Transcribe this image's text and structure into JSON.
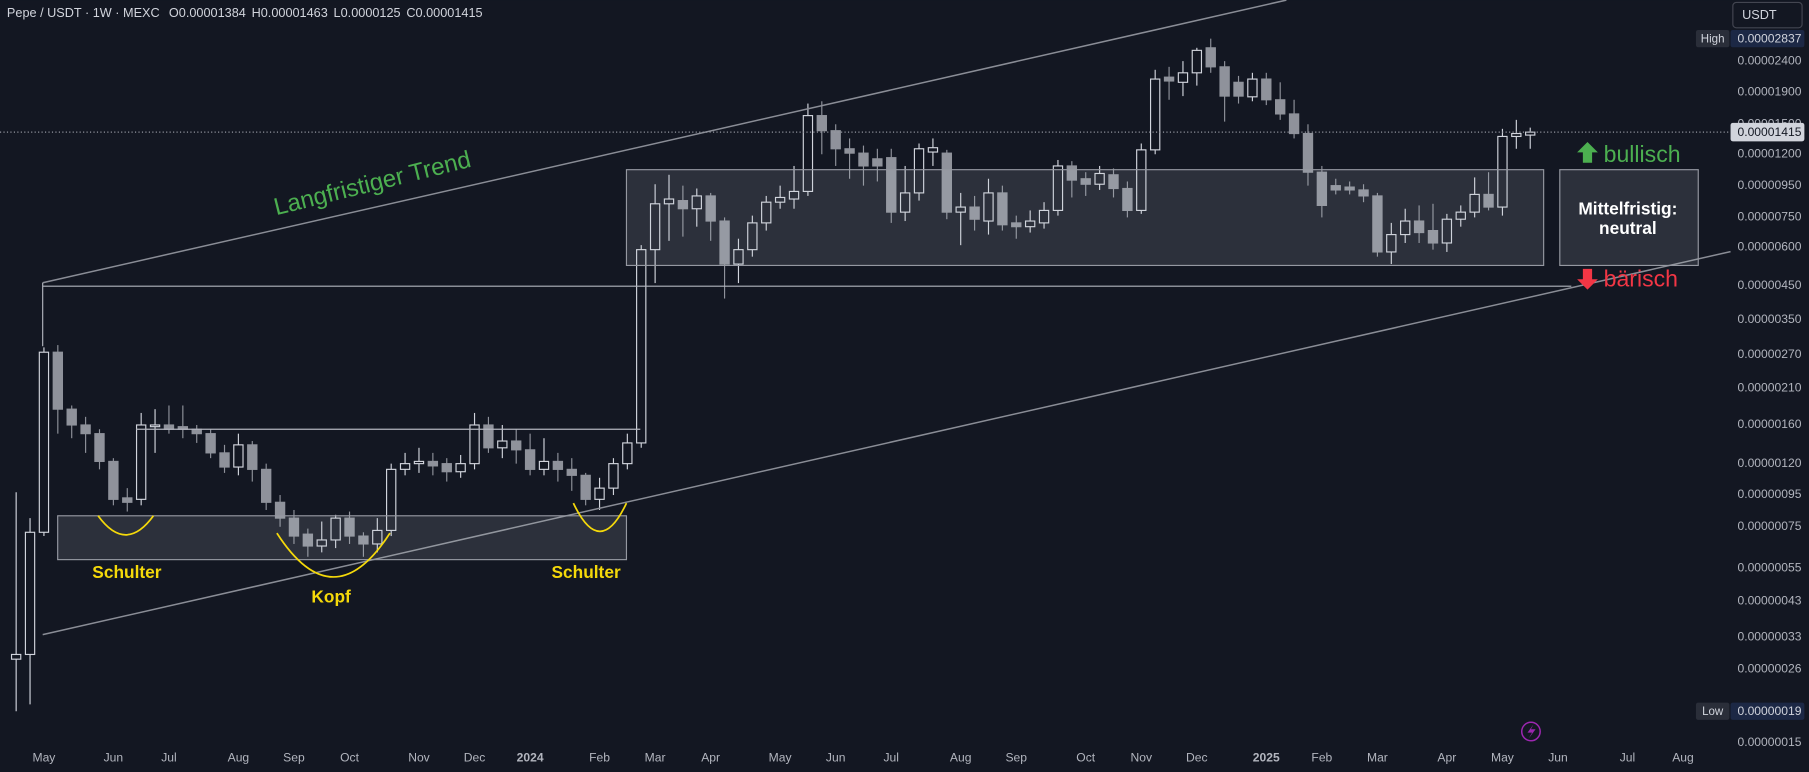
{
  "chart_data": {
    "type": "candlestick",
    "header": {
      "symbol": "Pepe / USDT · 1W · MEXC",
      "fields": [
        "O",
        "H",
        "L",
        "C"
      ],
      "currency": "USDT"
    },
    "categories": [
      null,
      null,
      "May",
      null,
      null,
      null,
      null,
      "Jun",
      null,
      null,
      null,
      "Jul",
      null,
      null,
      null,
      null,
      "Aug",
      null,
      null,
      null,
      "Sep",
      null,
      null,
      null,
      "Oct",
      null,
      null,
      null,
      null,
      "Nov",
      null,
      null,
      null,
      "Dec",
      null,
      null,
      null,
      "2024",
      null,
      null,
      null,
      null,
      "Feb",
      null,
      null,
      null,
      "Mar",
      null,
      null,
      null,
      "Apr",
      null,
      null,
      null,
      null,
      "May",
      null,
      null,
      null,
      "Jun",
      null,
      null,
      null,
      "Jul",
      null,
      null,
      null,
      null,
      "Aug",
      null,
      null,
      null,
      "Sep",
      null,
      null,
      null,
      null,
      "Oct",
      null,
      null,
      null,
      "Nov",
      null,
      null,
      null,
      "Dec",
      null,
      null,
      null,
      null,
      "2025",
      null,
      null,
      null,
      "Feb",
      null,
      null,
      null,
      "Mar",
      null,
      null,
      null,
      null,
      "Apr",
      null,
      null,
      null,
      "May",
      null,
      null,
      null,
      "Jun",
      null,
      null,
      null,
      null,
      "Jul",
      null,
      null,
      null,
      "Aug"
    ],
    "open": [
      2.8e-07,
      2.9e-07,
      7.2e-07,
      2.75e-06,
      1.8e-06,
      1.6e-06,
      1.5e-06,
      1.22e-06,
      9.3e-07,
      9.2e-07,
      1.58e-06,
      1.6e-06,
      1.58e-06,
      1.55e-06,
      1.5e-06,
      1.3e-06,
      1.17e-06,
      1.38e-06,
      1.15e-06,
      9e-07,
      8e-07,
      7.1e-07,
      6.5e-07,
      6.8e-07,
      8e-07,
      7e-07,
      6.6e-07,
      7.3e-07,
      1.15e-06,
      1.2e-06,
      1.22e-06,
      1.2e-06,
      1.13e-06,
      1.2e-06,
      1.6e-06,
      1.35e-06,
      1.42e-06,
      1.33e-06,
      1.15e-06,
      1.22e-06,
      1.15e-06,
      1.1e-06,
      9.2e-07,
      1e-06,
      1.2e-06,
      1.4e-06,
      5.9e-06,
      8.3e-06,
      8.5e-06,
      8e-06,
      8.8e-06,
      7.3e-06,
      5.3e-06,
      5.9e-06,
      7.2e-06,
      8.4e-06,
      8.6e-06,
      9.1e-06,
      1.6e-05,
      1.43e-05,
      1.25e-05,
      1.21e-05,
      1.16e-05,
      1.17e-05,
      7.8e-06,
      9e-06,
      1.22e-05,
      1.21e-05,
      7.8e-06,
      8.1e-06,
      7.3e-06,
      9e-06,
      7.2e-06,
      7e-06,
      7.2e-06,
      7.9e-06,
      1.1e-05,
      1e-05,
      9.6e-06,
      1.03e-05,
      9.3e-06,
      7.9e-06,
      1.24e-05,
      2.13e-05,
      2.05e-05,
      2.2e-05,
      2.65e-05,
      2.3e-05,
      2.05e-05,
      1.84e-05,
      2.1e-05,
      1.8e-05,
      1.62e-05,
      1.4e-05,
      1.05e-05,
      9.5e-06,
      9.4e-06,
      9.2e-06,
      8.8e-06,
      5.8e-06,
      6.6e-06,
      7.3e-06,
      6.8e-06,
      6.2e-06,
      7.4e-06,
      7.8e-06,
      8.9e-06,
      8.1e-06,
      1.37e-05,
      1.384e-05,
      null,
      null,
      null,
      null,
      null,
      null,
      null,
      null,
      null,
      null,
      null
    ],
    "high": [
      9.7e-07,
      8e-07,
      2.85e-06,
      2.9e-06,
      1.85e-06,
      1.7e-06,
      1.55e-06,
      1.25e-06,
      1e-06,
      1.75e-06,
      1.8e-06,
      1.85e-06,
      1.85e-06,
      1.6e-06,
      1.55e-06,
      1.38e-06,
      1.5e-06,
      1.42e-06,
      1.2e-06,
      9.5e-07,
      8.5e-07,
      7.4e-07,
      7.8e-07,
      8.2e-07,
      8.4e-07,
      7.2e-07,
      8e-07,
      1.2e-06,
      1.3e-06,
      1.35e-06,
      1.3e-06,
      1.25e-06,
      1.28e-06,
      1.75e-06,
      1.7e-06,
      1.6e-06,
      1.55e-06,
      1.5e-06,
      1.45e-06,
      1.3e-06,
      1.25e-06,
      1.12e-06,
      1.08e-06,
      1.25e-06,
      1.5e-06,
      6.1e-06,
      9.6e-06,
      1.03e-05,
      9.5e-06,
      9.3e-06,
      9e-06,
      7.5e-06,
      6.4e-06,
      7.6e-06,
      8.8e-06,
      9.5e-06,
      1.1e-05,
      1.75e-05,
      1.78e-05,
      1.5e-05,
      1.35e-05,
      1.28e-05,
      1.25e-05,
      1.25e-05,
      1.1e-05,
      1.3e-05,
      1.35e-05,
      1.24e-05,
      9e-06,
      8.8e-06,
      1e-05,
      9.5e-06,
      7.6e-06,
      7.9e-06,
      8.4e-06,
      1.15e-05,
      1.14e-05,
      1.05e-05,
      1.1e-05,
      1.08e-05,
      9.8e-06,
      1.3e-05,
      2.25e-05,
      2.3e-05,
      2.4e-05,
      2.65e-05,
      2.837e-05,
      2.4e-05,
      2.15e-05,
      2.2e-05,
      2.2e-05,
      2.05e-05,
      1.8e-05,
      1.5e-05,
      1.1e-05,
      1e-05,
      9.8e-06,
      9.6e-06,
      9e-06,
      7.2e-06,
      8e-06,
      8.2e-06,
      8.3e-06,
      7.7e-06,
      8.2e-06,
      1.01e-05,
      1.05e-05,
      1.45e-05,
      1.55e-05,
      1.463e-05,
      null,
      null,
      null,
      null,
      null,
      null,
      null,
      null,
      null,
      null,
      null
    ],
    "low": [
      1.9e-07,
      2e-07,
      7e-07,
      1.5e-06,
      1.45e-06,
      1.3e-06,
      1.15e-06,
      8.8e-07,
      8.4e-07,
      8.8e-07,
      1.3e-06,
      1.5e-06,
      1.45e-06,
      1.4e-06,
      1.25e-06,
      1.12e-06,
      1.1e-06,
      1.05e-06,
      8.5e-07,
      7.5e-07,
      6.6e-07,
      6e-07,
      6.2e-07,
      6.4e-07,
      6.6e-07,
      6e-07,
      6.2e-07,
      7e-07,
      1.1e-06,
      1.12e-06,
      1.1e-06,
      1.05e-06,
      1.08e-06,
      1.15e-06,
      1.3e-06,
      1.25e-06,
      1.2e-06,
      1.1e-06,
      1.1e-06,
      1.05e-06,
      9.8e-07,
      8.8e-07,
      8.5e-07,
      9.5e-07,
      1.15e-06,
      1.35e-06,
      4.6e-06,
      6.3e-06,
      6.5e-06,
      7e-06,
      6.3e-06,
      4.1e-06,
      4.6e-06,
      5.6e-06,
      6.8e-06,
      8e-06,
      8e-06,
      8.8e-06,
      1.2e-05,
      1.1e-05,
      1e-05,
      9.5e-06,
      9.8e-06,
      7.2e-06,
      7.3e-06,
      8.5e-06,
      1.1e-05,
      7.4e-06,
      6.1e-06,
      6.8e-06,
      6.6e-06,
      6.8e-06,
      6.4e-06,
      6.7e-06,
      6.9e-06,
      7.6e-06,
      8.7e-06,
      8.8e-06,
      9.2e-06,
      8.7e-06,
      7.5e-06,
      7.7e-06,
      1.2e-05,
      1.8e-05,
      1.85e-05,
      2e-05,
      2.2e-05,
      1.53e-05,
      1.75e-05,
      1.78e-05,
      1.73e-05,
      1.55e-05,
      1.35e-05,
      9.5e-06,
      7.5e-06,
      8.9e-06,
      8.9e-06,
      8.4e-06,
      5.6e-06,
      5.3e-06,
      6.2e-06,
      6.2e-06,
      5.9e-06,
      5.8e-06,
      7e-06,
      7.5e-06,
      7.9e-06,
      7.6e-06,
      1.25e-05,
      1.25e-05,
      null,
      null,
      null,
      null,
      null,
      null,
      null,
      null,
      null,
      null,
      null
    ],
    "close": [
      2.9e-07,
      7.2e-07,
      2.75e-06,
      1.8e-06,
      1.6e-06,
      1.5e-06,
      1.22e-06,
      9.2e-07,
      9e-07,
      1.6e-06,
      1.6e-06,
      1.55e-06,
      1.55e-06,
      1.5e-06,
      1.3e-06,
      1.17e-06,
      1.38e-06,
      1.15e-06,
      9e-07,
      8e-07,
      7e-07,
      6.5e-07,
      6.8e-07,
      8e-07,
      7e-07,
      6.6e-07,
      7.3e-07,
      1.15e-06,
      1.2e-06,
      1.22e-06,
      1.18e-06,
      1.13e-06,
      1.2e-06,
      1.6e-06,
      1.35e-06,
      1.42e-06,
      1.33e-06,
      1.15e-06,
      1.22e-06,
      1.15e-06,
      1.1e-06,
      9.2e-07,
      1e-06,
      1.2e-06,
      1.4e-06,
      5.9e-06,
      8.3e-06,
      8.6e-06,
      8e-06,
      8.8e-06,
      7.3e-06,
      5.3e-06,
      5.9e-06,
      7.2e-06,
      8.4e-06,
      8.7e-06,
      9.1e-06,
      1.6e-05,
      1.43e-05,
      1.25e-05,
      1.21e-05,
      1.1e-05,
      1.1e-05,
      7.8e-06,
      9e-06,
      1.25e-05,
      1.26e-05,
      7.8e-06,
      8.1e-06,
      7.4e-06,
      9e-06,
      7.1e-06,
      7e-06,
      7.3e-06,
      7.9e-06,
      1.1e-05,
      9.9e-06,
      9.6e-06,
      1.04e-05,
      9.3e-06,
      7.9e-06,
      1.24e-05,
      2.1e-05,
      2.07e-05,
      2.2e-05,
      2.6e-05,
      2.3e-05,
      1.85e-05,
      1.85e-05,
      2.1e-05,
      1.8e-05,
      1.62e-05,
      1.4e-05,
      1.05e-05,
      8.2e-06,
      9.2e-06,
      9.2e-06,
      8.8e-06,
      5.8e-06,
      6.6e-06,
      7.3e-06,
      6.7e-06,
      6.2e-06,
      7.4e-06,
      7.8e-06,
      8.9e-06,
      8.1e-06,
      1.37e-05,
      1.4e-05,
      1.415e-05,
      null,
      null,
      null,
      null,
      null,
      null,
      null,
      null,
      null,
      null,
      null
    ],
    "up_color": "#d1d4dc",
    "down_color": "#8f929b",
    "yscale": "log",
    "grid": false,
    "ylim": [
      1.449e-07,
      3.78e-05
    ],
    "yticks": [
      {
        "value": 2.4e-05,
        "label": "0.00002400"
      },
      {
        "value": 1.9e-05,
        "label": "0.00001900"
      },
      {
        "value": 1.5e-05,
        "label": "0.00001500"
      },
      {
        "value": 1.2e-05,
        "label": "0.00001200"
      },
      {
        "value": 9.5e-06,
        "label": "0.00000950"
      },
      {
        "value": 7.5e-06,
        "label": "0.00000750"
      },
      {
        "value": 6e-06,
        "label": "0.00000600"
      },
      {
        "value": 4.5e-06,
        "label": "0.00000450"
      },
      {
        "value": 3.5e-06,
        "label": "0.00000350"
      },
      {
        "value": 2.7e-06,
        "label": "0.00000270"
      },
      {
        "value": 2.1e-06,
        "label": "0.00000210"
      },
      {
        "value": 1.6e-06,
        "label": "0.00000160"
      },
      {
        "value": 1.2e-06,
        "label": "0.00000120"
      },
      {
        "value": 9.5e-07,
        "label": "0.00000095"
      },
      {
        "value": 7.5e-07,
        "label": "0.00000075"
      },
      {
        "value": 5.5e-07,
        "label": "0.00000055"
      },
      {
        "value": 4.3e-07,
        "label": "0.00000043"
      },
      {
        "value": 3.3e-07,
        "label": "0.00000033"
      },
      {
        "value": 2.6e-07,
        "label": "0.00000026"
      },
      {
        "value": 1.5e-07,
        "label": "0.00000015"
      }
    ],
    "markers": [
      {
        "name": "High",
        "value": 2.837e-05,
        "label": "0.00002837"
      },
      {
        "name": "Low",
        "value": 1.9e-07,
        "label": "0.00000019"
      }
    ],
    "annotations": {
      "trend": "Langfristiger Trend",
      "shoulder_left": "Schulter",
      "head": "Kopf",
      "shoulder_right": "Schulter",
      "bullish": "bullisch",
      "bearish": "bärisch",
      "outlook": [
        "Mittelfristig:",
        "neutral"
      ]
    }
  }
}
